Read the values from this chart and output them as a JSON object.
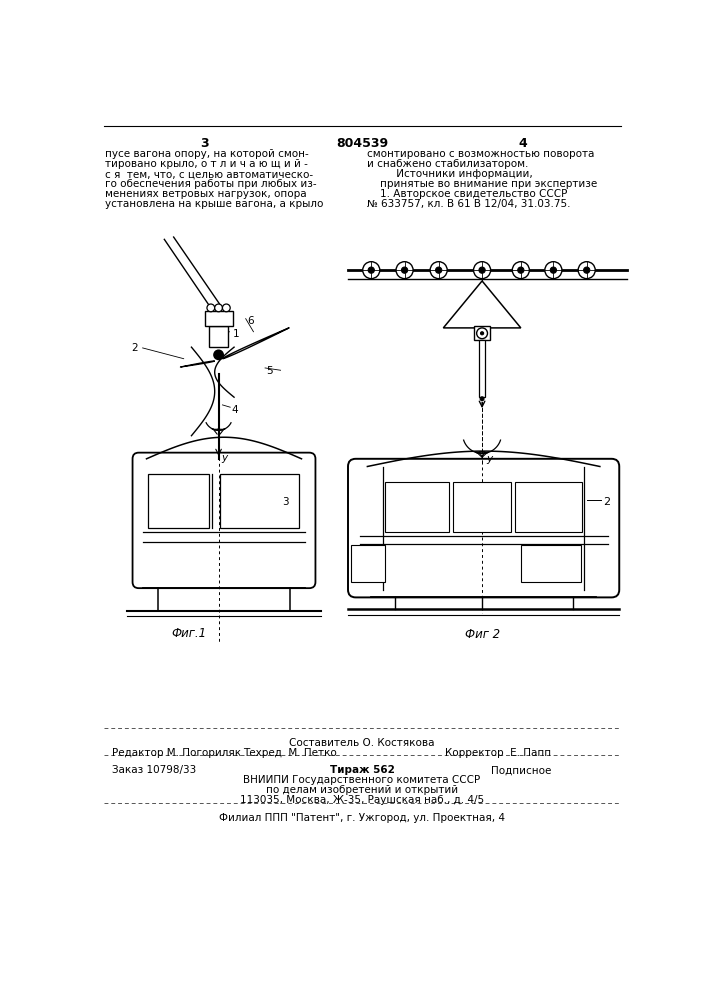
{
  "page_number_left": "3",
  "patent_number": "804539",
  "page_number_right": "4",
  "top_text_left": "пусе вагона опору, на которой смон-\nтировано крыло, о т л и ч а ю щ и й -\nс я  тем, что, с целью автоматическо-\nго обеспечения работы при любых из-\nменениях ветровых нагрузок, опора\nустановлена на крыше вагона, а крыло",
  "top_text_right": "смонтировано с возможностью поворота\nи снабжено стабилизатором.\n         Источники информации,\n    принятые во внимание при экспертизе\n    1. Авторское свидетельство СССР\n№ 633757, кл. В 61 В 12/04, 31.03.75.",
  "fig1_label": "Фиг.1",
  "fig2_label": "Фиг 2",
  "footer_author": "Составитель О. Костякова",
  "footer_editor": "Редактор М. Погориляк",
  "footer_tech": "Техред  М. Петко",
  "footer_corrector": "Корректор  Е. Папп",
  "footer_order": "Заказ 10798/33",
  "footer_print": "Тираж 562",
  "footer_subscription": "Подписное",
  "footer_org": "ВНИИПИ Государственного комитета СССР",
  "footer_org2": "по делам изобретений и открытий",
  "footer_address": "113035, Москва, Ж-35, Раушская наб., д. 4/5",
  "footer_filial": "Филиал ППП \"Патент\", г. Ужгород, ул. Проектная, 4",
  "bg_color": "#ffffff",
  "text_color": "#000000",
  "line_color": "#000000",
  "dashed_color": "#555555"
}
